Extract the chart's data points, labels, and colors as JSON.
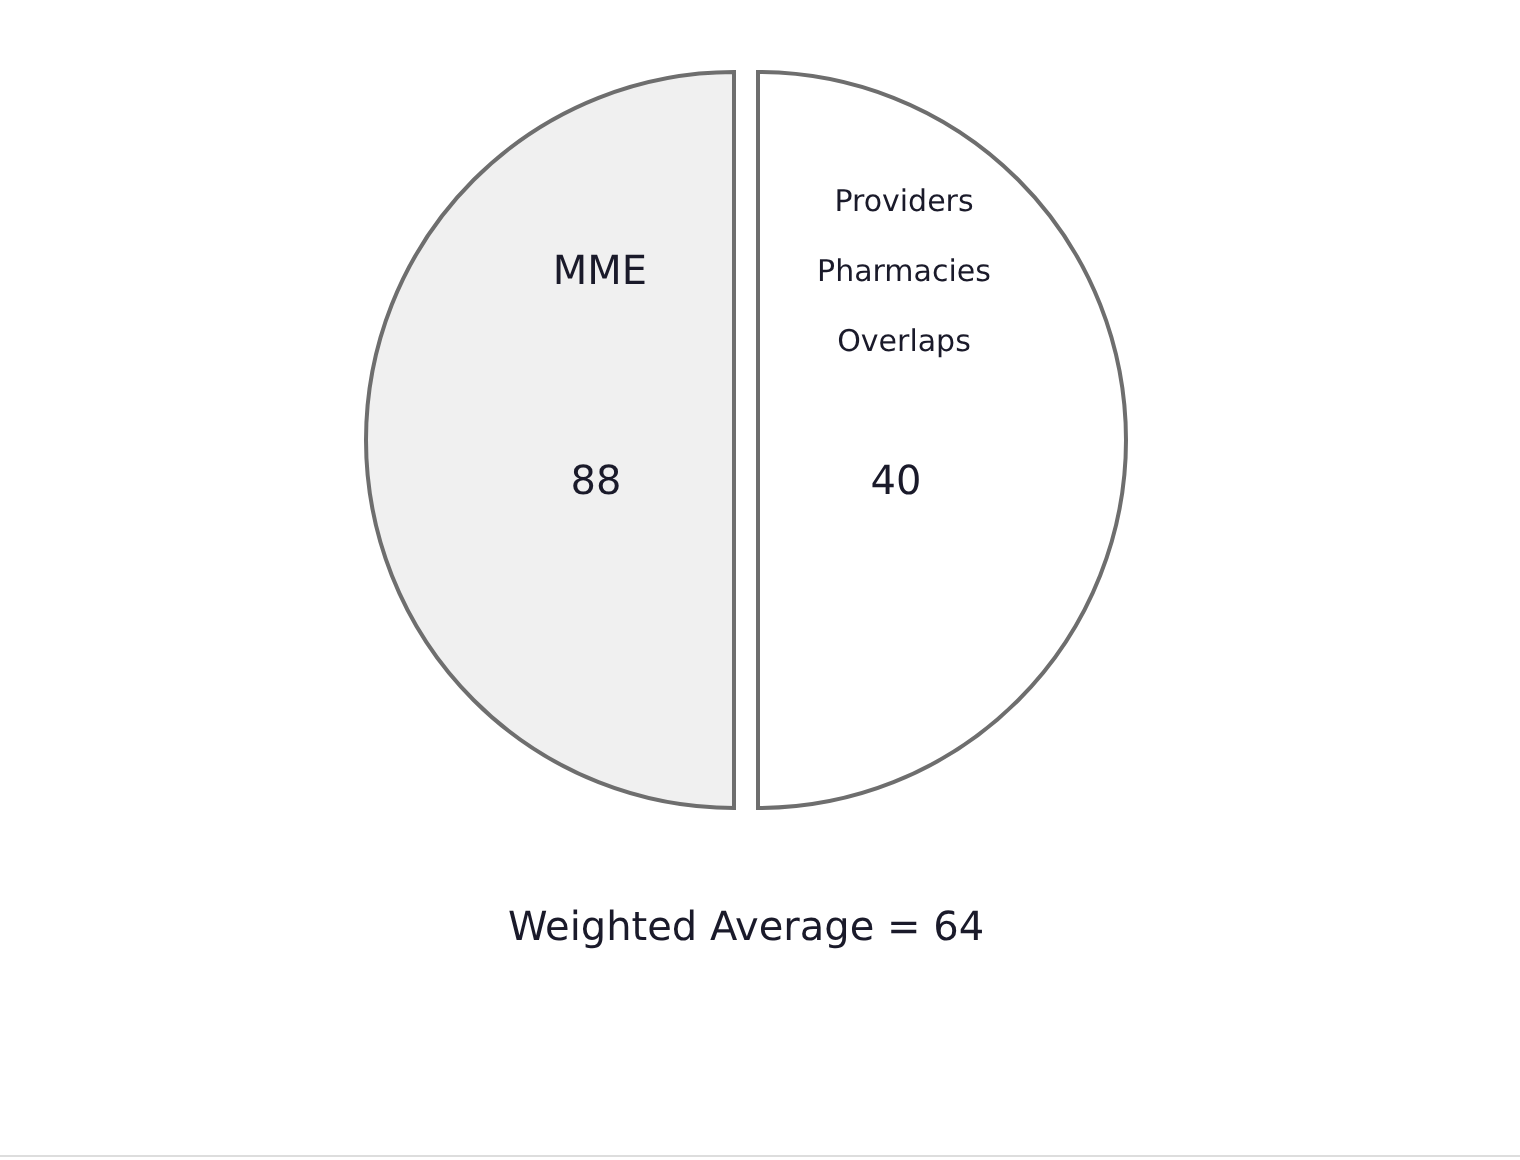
{
  "chart_data": {
    "type": "pie",
    "categories": [
      "MME",
      "Providers Pharmacies Overlaps"
    ],
    "values": [
      50,
      50
    ],
    "colors": [
      "#f0f0f0",
      "#ffffff"
    ],
    "annotations": [
      {
        "text": "88",
        "x": "MME"
      },
      {
        "text": "40",
        "x": "Providers Pharmacies Overlaps"
      },
      "Weighted Average = 64"
    ]
  }
}
